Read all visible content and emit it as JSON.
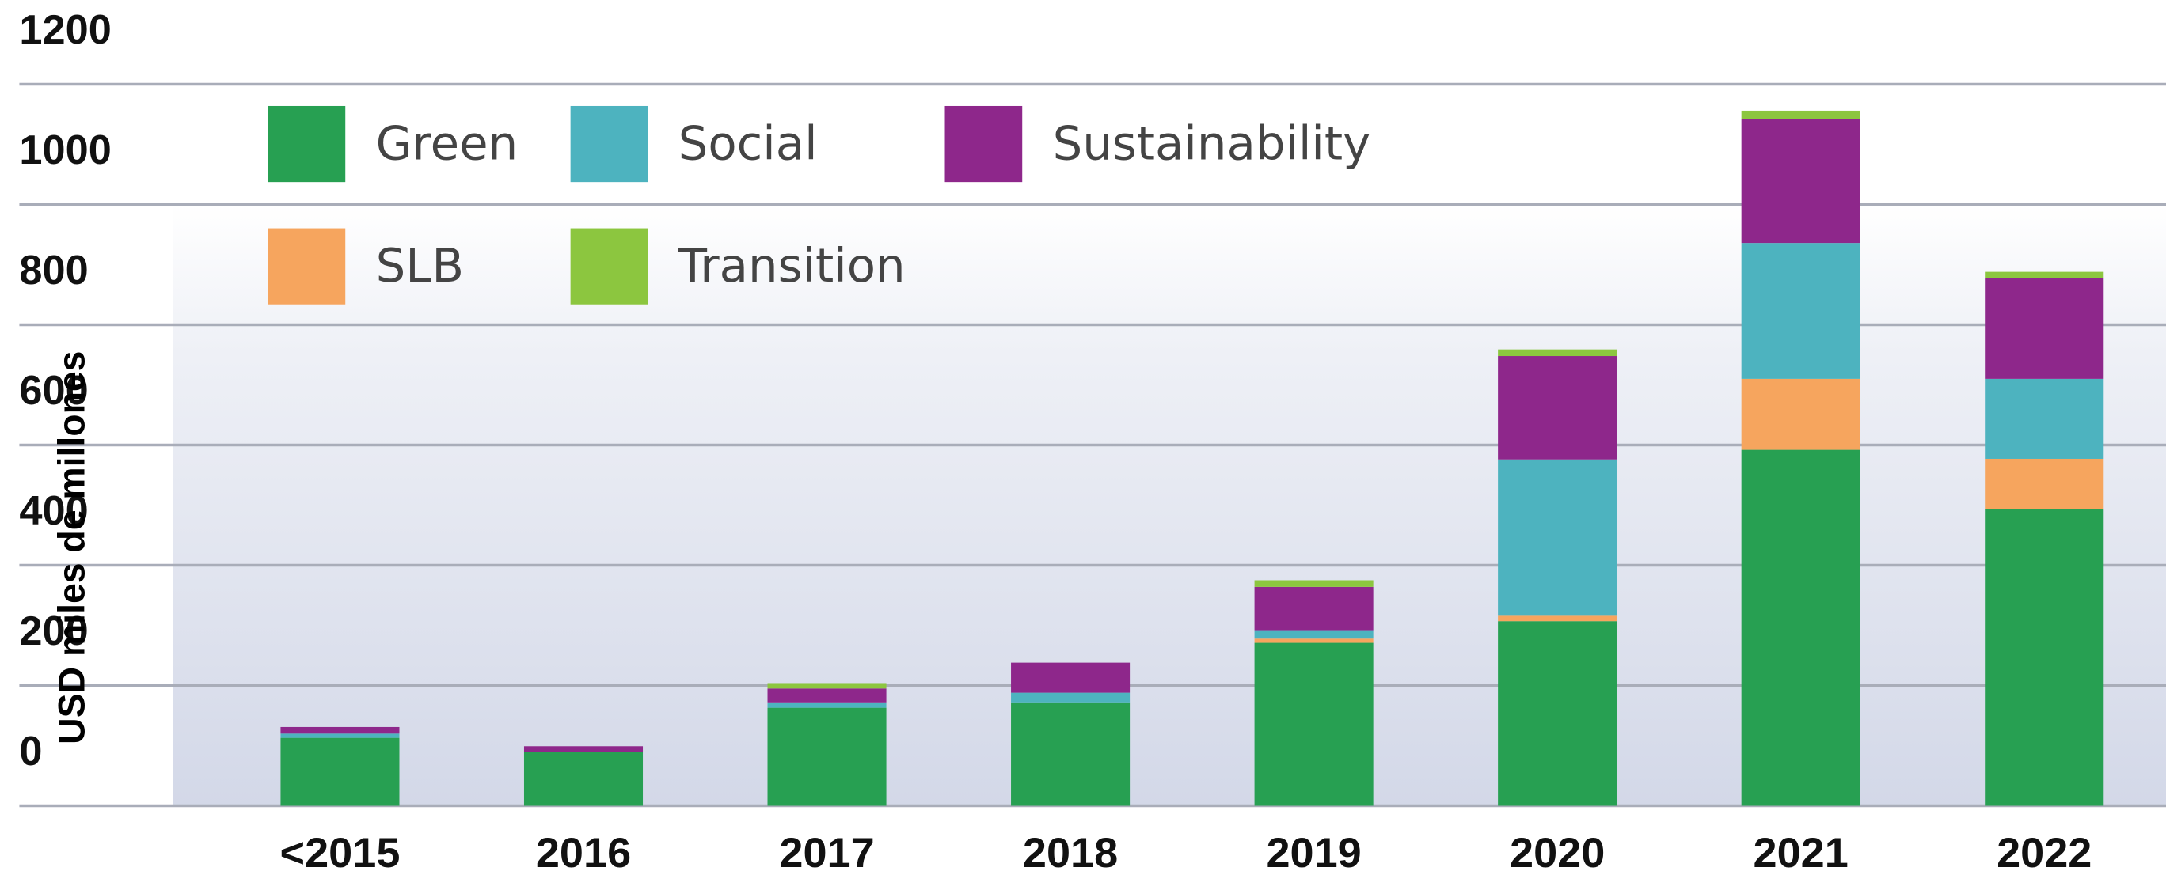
{
  "chart_data": {
    "type": "stacked_bar",
    "y_label": "USD miles de millones",
    "categories": [
      "<2015",
      "2016",
      "2017",
      "2018",
      "2019",
      "2020",
      "2021",
      "2022"
    ],
    "series": [
      {
        "name": "Green",
        "color": "#27a052",
        "values": [
          113,
          90,
          163,
          172,
          271,
          307,
          592,
          493
        ]
      },
      {
        "name": "SLB",
        "color": "#f6a55e",
        "values": [
          0,
          0,
          0,
          0,
          7,
          9,
          118,
          84
        ]
      },
      {
        "name": "Social",
        "color": "#4db3bf",
        "values": [
          7,
          0,
          9,
          16,
          14,
          260,
          226,
          133
        ]
      },
      {
        "name": "Sustainability",
        "color": "#8e278b",
        "values": [
          11,
          9,
          23,
          50,
          72,
          172,
          206,
          167
        ]
      },
      {
        "name": "Transition",
        "color": "#8cc63f",
        "values": [
          0,
          0,
          9,
          0,
          11,
          11,
          14,
          11
        ]
      }
    ],
    "ylim": [
      0,
      1200
    ],
    "yticks": [
      0,
      200,
      400,
      600,
      800,
      1000,
      1200
    ],
    "grid": true
  }
}
